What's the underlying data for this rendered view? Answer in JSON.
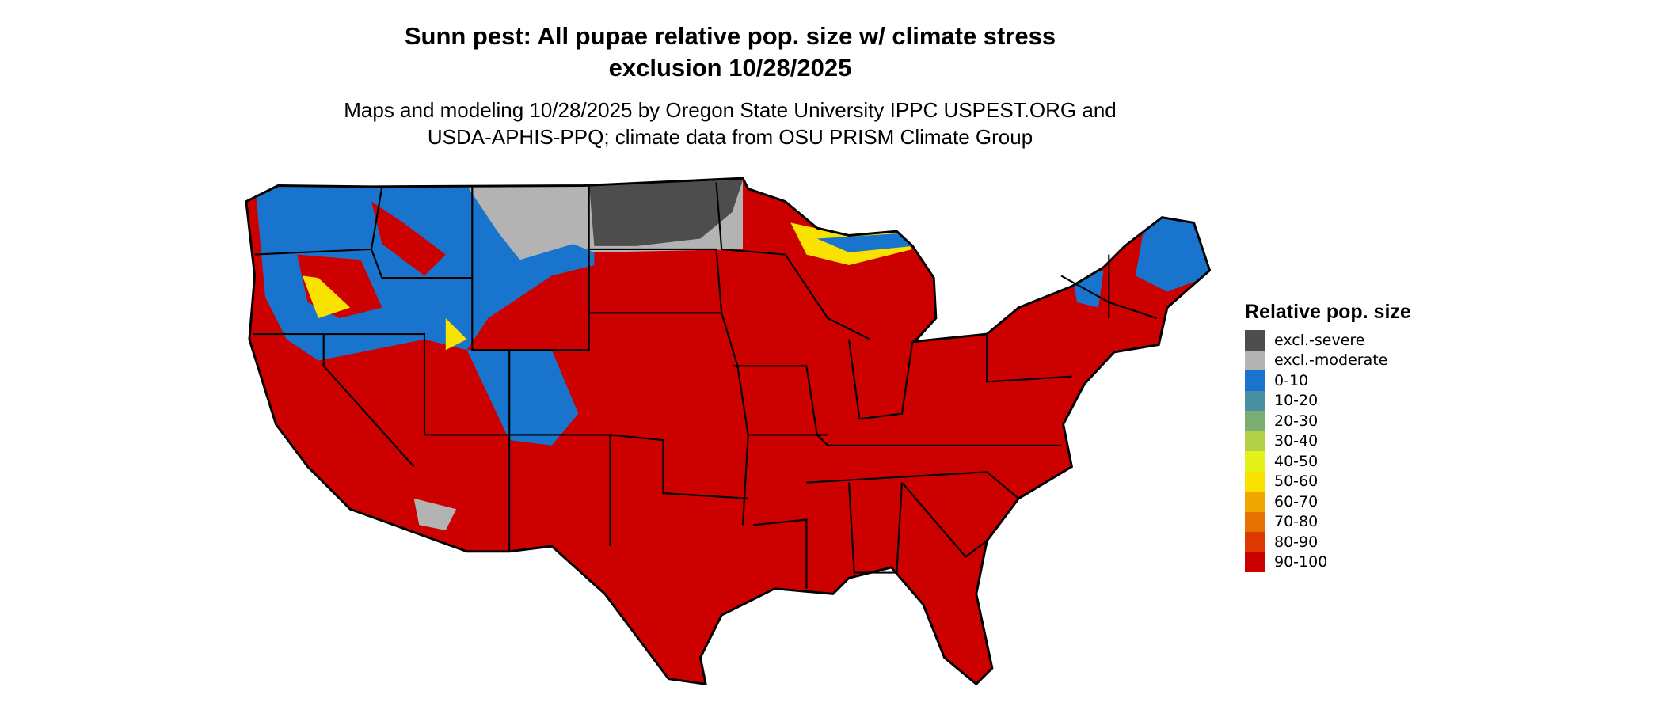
{
  "title_line1": "Sunn pest: All pupae relative pop. size w/ climate stress",
  "title_line2": "exclusion 10/28/2025",
  "subtitle_line1": "Maps and modeling 10/28/2025 by Oregon State University IPPC USPEST.ORG and",
  "subtitle_line2": "USDA-APHIS-PPQ; climate data from OSU PRISM Climate Group",
  "legend": {
    "title": "Relative pop. size",
    "items": [
      {
        "label": "excl.-severe",
        "color": "#4d4d4d"
      },
      {
        "label": "excl.-moderate",
        "color": "#b3b3b3"
      },
      {
        "label": "0-10",
        "color": "#1874cd"
      },
      {
        "label": "10-20",
        "color": "#4a90a0"
      },
      {
        "label": "20-30",
        "color": "#7cae74"
      },
      {
        "label": "30-40",
        "color": "#b3d146"
      },
      {
        "label": "40-50",
        "color": "#e5f21a"
      },
      {
        "label": "50-60",
        "color": "#f9e100"
      },
      {
        "label": "60-70",
        "color": "#f0a800"
      },
      {
        "label": "70-80",
        "color": "#e57200"
      },
      {
        "label": "80-90",
        "color": "#dc3a00"
      },
      {
        "label": "90-100",
        "color": "#cd0000"
      }
    ]
  }
}
